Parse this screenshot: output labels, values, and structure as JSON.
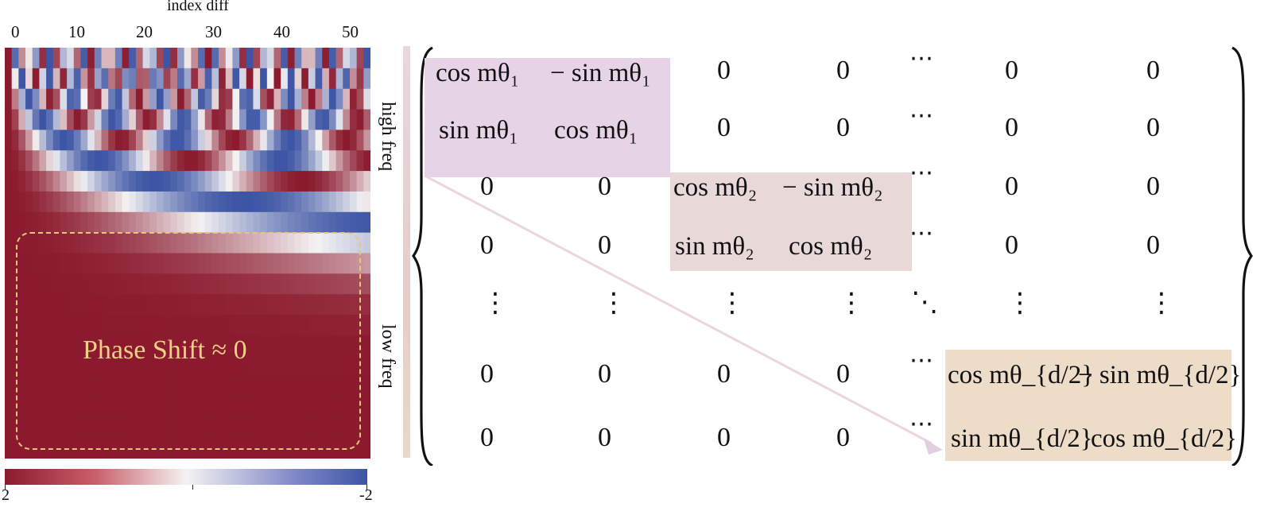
{
  "heatmap": {
    "axis_title": "index diff",
    "x_ticks": [
      "0",
      "10",
      "20",
      "30",
      "40",
      "50"
    ],
    "annotation": "Phase Shift ≈ 0",
    "colorbar": {
      "left_label": "2",
      "right_label": "-2",
      "min": -2,
      "max": 2
    },
    "colors": {
      "high": "#8b1a2e",
      "mid": "#f4f2f2",
      "low": "#3d55a5",
      "annotation": "#f0cf86"
    }
  },
  "frequency_axis": {
    "high_label": "high freq",
    "low_label": "low freq"
  },
  "matrix": {
    "zero": "0",
    "block1": {
      "a": "cos mθ₁",
      "b": "− sin mθ₁",
      "c": "sin mθ₁",
      "d": "cos mθ₁",
      "color": "#e6d4e6"
    },
    "block2": {
      "a": "cos mθ₂",
      "b": "− sin mθ₂",
      "c": "sin mθ₂",
      "d": "cos mθ₂",
      "color": "#e9d8d8"
    },
    "block3": {
      "a": "cos mθ_{d/2}",
      "b": "− sin mθ_{d/2}",
      "c": "sin mθ_{d/2}",
      "d": "cos mθ_{d/2}",
      "color": "#ecdcc8"
    },
    "hdots": "⋯",
    "vdots": "⋮",
    "ddots": "⋱"
  }
}
